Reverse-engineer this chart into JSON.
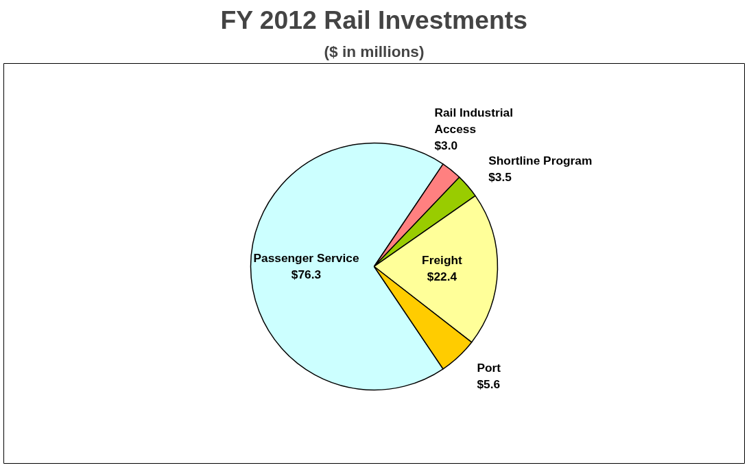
{
  "chart_data": {
    "type": "pie",
    "title": "FY 2012 Rail Investments",
    "subtitle": "($ in millions)",
    "categories": [
      "Passenger Service",
      "Rail Industrial Access",
      "Shortline Program",
      "Freight",
      "Port"
    ],
    "values": [
      76.3,
      3.0,
      3.5,
      22.4,
      5.6
    ],
    "colors": [
      "#ccffff",
      "#ff8080",
      "#99cc00",
      "#ffff99",
      "#ffcc00"
    ],
    "value_labels": [
      "$76.3",
      "$3.0",
      "$3.5",
      "$22.4",
      "$5.6"
    ]
  }
}
